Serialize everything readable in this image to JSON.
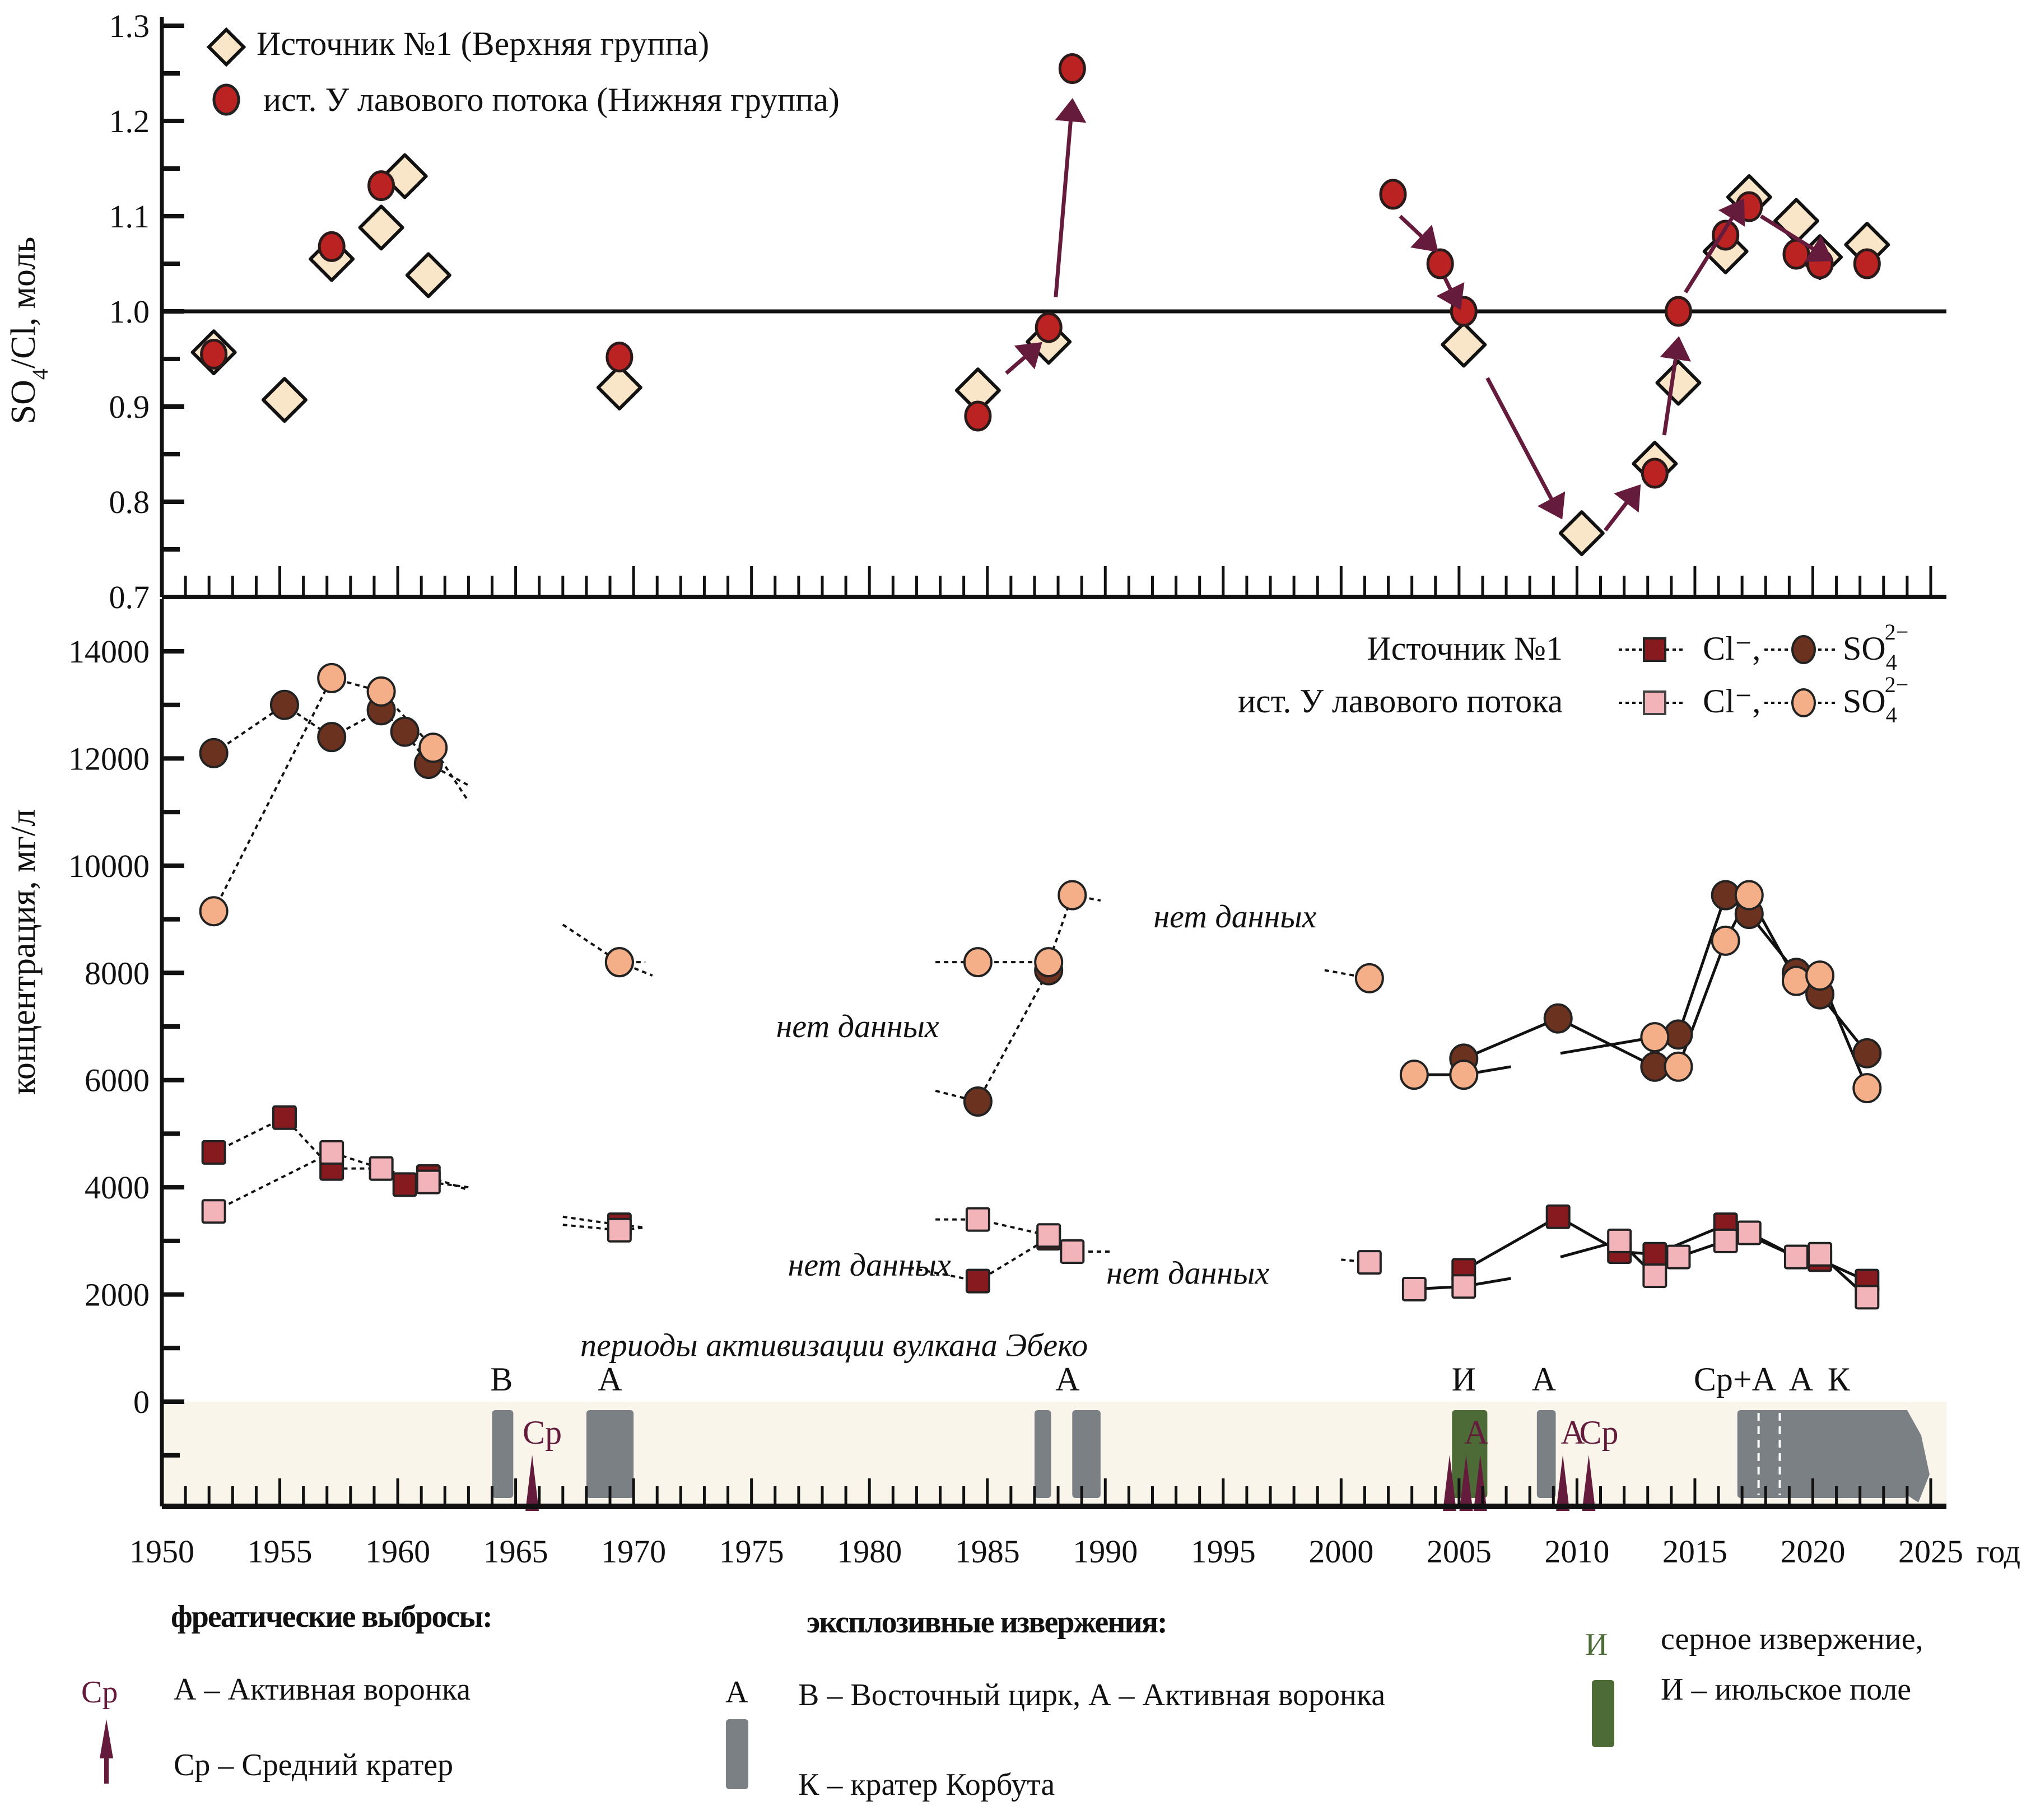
{
  "chart_data": [
    {
      "type": "scatter",
      "title": "",
      "ylabel": "SO4/Cl, моль",
      "xlabel": "",
      "ylim": [
        0.7,
        1.3
      ],
      "xlim": [
        1950,
        2025
      ],
      "yticks": [
        "0.7",
        "0.8",
        "0.9",
        "1.0",
        "1.1",
        "1.2",
        "1.3"
      ],
      "reference_line": 1.0,
      "legend_position": "top-left",
      "series": [
        {
          "name": "Источник №1 (Верхняя группа)",
          "marker": "diamond",
          "color": "#f9e6c8",
          "points": [
            {
              "x": 1952.2,
              "y": 0.957
            },
            {
              "x": 1955.2,
              "y": 0.907
            },
            {
              "x": 1957.2,
              "y": 1.055
            },
            {
              "x": 1959.3,
              "y": 1.088
            },
            {
              "x": 1960.3,
              "y": 1.142
            },
            {
              "x": 1961.3,
              "y": 1.038
            },
            {
              "x": 1969.4,
              "y": 0.92
            },
            {
              "x": 1984.6,
              "y": 0.917
            },
            {
              "x": 1987.6,
              "y": 0.968
            },
            {
              "x": 2005.2,
              "y": 0.965
            },
            {
              "x": 2010.2,
              "y": 0.767
            },
            {
              "x": 2013.3,
              "y": 0.84
            },
            {
              "x": 2014.3,
              "y": 0.925
            },
            {
              "x": 2016.3,
              "y": 1.063
            },
            {
              "x": 2017.3,
              "y": 1.12
            },
            {
              "x": 2019.3,
              "y": 1.095
            },
            {
              "x": 2020.3,
              "y": 1.057
            },
            {
              "x": 2022.3,
              "y": 1.07
            }
          ]
        },
        {
          "name": "ист. У лавового потока (Нижняя группа)",
          "marker": "circle",
          "color": "#bb2323",
          "points": [
            {
              "x": 1952.2,
              "y": 0.955
            },
            {
              "x": 1957.2,
              "y": 1.068
            },
            {
              "x": 1959.3,
              "y": 1.132
            },
            {
              "x": 1969.4,
              "y": 0.952
            },
            {
              "x": 1984.6,
              "y": 0.89
            },
            {
              "x": 1987.6,
              "y": 0.983
            },
            {
              "x": 1988.6,
              "y": 1.255
            },
            {
              "x": 2002.2,
              "y": 1.123
            },
            {
              "x": 2004.2,
              "y": 1.05
            },
            {
              "x": 2005.2,
              "y": 1.0
            },
            {
              "x": 2013.3,
              "y": 0.83
            },
            {
              "x": 2014.3,
              "y": 1.0
            },
            {
              "x": 2016.3,
              "y": 1.08
            },
            {
              "x": 2017.3,
              "y": 1.11
            },
            {
              "x": 2019.3,
              "y": 1.06
            },
            {
              "x": 2020.3,
              "y": 1.05
            },
            {
              "x": 2022.3,
              "y": 1.05
            }
          ]
        }
      ],
      "arrows": [
        {
          "from": [
            1985.8,
            0.935
          ],
          "to": [
            1987.2,
            0.965
          ]
        },
        {
          "from": [
            1987.9,
            1.015
          ],
          "to": [
            1988.6,
            1.22
          ]
        },
        {
          "from": [
            2002.5,
            1.1
          ],
          "to": [
            2004.0,
            1.065
          ]
        },
        {
          "from": [
            2004.4,
            1.035
          ],
          "to": [
            2005.0,
            1.005
          ]
        },
        {
          "from": [
            2006.2,
            0.93
          ],
          "to": [
            2009.3,
            0.785
          ]
        },
        {
          "from": [
            2011.2,
            0.77
          ],
          "to": [
            2012.6,
            0.815
          ]
        },
        {
          "from": [
            2013.7,
            0.87
          ],
          "to": [
            2014.3,
            0.97
          ]
        },
        {
          "from": [
            2014.6,
            1.02
          ],
          "to": [
            2017.0,
            1.115
          ]
        },
        {
          "from": [
            2017.8,
            1.1
          ],
          "to": [
            2020.7,
            1.055
          ]
        }
      ]
    },
    {
      "type": "line",
      "title": "",
      "ylabel": "концентрация, мг/л",
      "xlabel": "год",
      "ylim": [
        -2000,
        15000
      ],
      "xlim": [
        1950,
        2025
      ],
      "yticks": [
        "0",
        "2000",
        "4000",
        "6000",
        "8000",
        "10000",
        "12000",
        "14000"
      ],
      "xticks": [
        "1950",
        "1955",
        "1960",
        "1965",
        "1970",
        "1975",
        "1980",
        "1985",
        "1990",
        "1995",
        "2000",
        "2005",
        "2010",
        "2015",
        "2020",
        "2025"
      ],
      "legend_position": "top-right",
      "legend": {
        "rows": [
          {
            "label": "Источник №1",
            "cl": "Cl⁻,",
            "so4": "SO",
            "so4_sub": "4",
            "so4_sup": "2−"
          },
          {
            "label": "ист. У лавового потока",
            "cl": "Cl⁻,",
            "so4": "SO",
            "so4_sub": "4",
            "so4_sup": "2−"
          }
        ]
      },
      "series": [
        {
          "name": "Источник №1 SO4",
          "marker": "circle",
          "color": "#6b3220",
          "segments": [
            [
              [
                1952.2,
                12100
              ],
              [
                1955.2,
                13000
              ],
              [
                1957.2,
                12400
              ],
              [
                1959.3,
                12900
              ],
              [
                1960.3,
                12500
              ],
              [
                1961.3,
                11900
              ],
              [
                1963,
                11500
              ]
            ],
            [
              [
                1967,
                8900
              ],
              [
                1969.4,
                8200
              ],
              [
                1970.8,
                7950
              ]
            ],
            [
              [
                1982.8,
                5800
              ],
              [
                1984.6,
                5600
              ],
              [
                1987.6,
                8050
              ]
            ],
            [
              [
                2005.2,
                6400
              ],
              [
                2009.2,
                7150
              ],
              [
                2013.3,
                6250
              ]
            ],
            [
              [
                2014.3,
                6850
              ],
              [
                2016.3,
                9450
              ],
              [
                2017.3,
                9100
              ],
              [
                2019.3,
                8000
              ],
              [
                2020.3,
                7600
              ],
              [
                2022.3,
                6500
              ]
            ]
          ]
        },
        {
          "name": "ист. У лавового потока SO4",
          "marker": "circle",
          "color": "#f4ae88",
          "segments": [
            [
              [
                1952.2,
                9150
              ],
              [
                1957.2,
                13500
              ],
              [
                1959.3,
                13250
              ],
              [
                1961.5,
                12200
              ],
              [
                1963,
                11200
              ]
            ],
            [
              [
                1969.4,
                8200
              ],
              [
                1970.5,
                8200
              ]
            ],
            [
              [
                1982.8,
                8200
              ],
              [
                1984.6,
                8200
              ],
              [
                1987.6,
                8200
              ],
              [
                1988.6,
                9450
              ],
              [
                1989.8,
                9350
              ]
            ],
            [
              [
                1999.3,
                8050
              ],
              [
                2001.2,
                7900
              ]
            ],
            [
              [
                2003.1,
                6100
              ],
              [
                2005.2,
                6100
              ],
              [
                2007.2,
                6250
              ]
            ],
            [
              [
                2009.3,
                6500
              ],
              [
                2013.3,
                6800
              ]
            ],
            [
              [
                2014.3,
                6250
              ],
              [
                2016.3,
                8600
              ],
              [
                2017.3,
                9450
              ],
              [
                2019.3,
                7850
              ],
              [
                2020.3,
                7950
              ],
              [
                2022.3,
                5850
              ]
            ]
          ]
        },
        {
          "name": "Источник №1 Cl",
          "marker": "square",
          "color": "#861a1e",
          "segments": [
            [
              [
                1952.2,
                4650
              ],
              [
                1955.2,
                5300
              ],
              [
                1957.2,
                4350
              ],
              [
                1959.3,
                4350
              ],
              [
                1960.3,
                4050
              ],
              [
                1961.3,
                4200
              ],
              [
                1963,
                3950
              ]
            ],
            [
              [
                1967,
                3450
              ],
              [
                1969.4,
                3300
              ],
              [
                1970.5,
                3250
              ]
            ],
            [
              [
                1981.7,
                2500
              ],
              [
                1984.6,
                2250
              ],
              [
                1987.6,
                3050
              ]
            ],
            [
              [
                2005.2,
                2450
              ],
              [
                2009.2,
                3450
              ],
              [
                2011.8,
                2800
              ],
              [
                2013.3,
                2750
              ],
              [
                2016.3,
                3300
              ],
              [
                2019.3,
                2700
              ],
              [
                2020.3,
                2650
              ],
              [
                2022.3,
                2250
              ]
            ]
          ]
        },
        {
          "name": "ист. У лавового потока Cl",
          "marker": "square",
          "color": "#f2b3b9",
          "segments": [
            [
              [
                1952.2,
                3550
              ],
              [
                1957.2,
                4650
              ],
              [
                1959.3,
                4350
              ],
              [
                1961.3,
                4100
              ],
              [
                1963,
                4000
              ]
            ],
            [
              [
                1967,
                3300
              ],
              [
                1969.4,
                3200
              ],
              [
                1970.5,
                3250
              ]
            ],
            [
              [
                1982.8,
                3400
              ],
              [
                1984.6,
                3400
              ],
              [
                1987.6,
                3100
              ],
              [
                1988.6,
                2800
              ],
              [
                1990.3,
                2800
              ]
            ],
            [
              [
                2000,
                2650
              ],
              [
                2001.2,
                2600
              ]
            ],
            [
              [
                2003.1,
                2100
              ],
              [
                2005.2,
                2150
              ],
              [
                2007.2,
                2300
              ]
            ],
            [
              [
                2009.3,
                2700
              ],
              [
                2011.8,
                3000
              ],
              [
                2013.3,
                2350
              ]
            ],
            [
              [
                2014.3,
                2700
              ],
              [
                2016.3,
                3000
              ],
              [
                2017.3,
                3150
              ],
              [
                2019.3,
                2700
              ],
              [
                2020.3,
                2750
              ],
              [
                2022.3,
                1950
              ]
            ]
          ]
        }
      ],
      "annotations": [
        {
          "text": "нет данных",
          "x": 1979.5,
          "y": 6800
        },
        {
          "text": "нет данных",
          "x": 1995.5,
          "y": 8850
        },
        {
          "text": "нет данных",
          "x": 1980,
          "y": 2350
        },
        {
          "text": "нет данных",
          "x": 1993.5,
          "y": 2200
        },
        {
          "text": "периоды активизации вулкана Эбеко",
          "x": 1978.5,
          "y": 850
        }
      ],
      "activity": {
        "explosive_bars": [
          {
            "start": 1964.0,
            "end": 1964.9,
            "label": "В"
          },
          {
            "start": 1968.0,
            "end": 1970.0,
            "label": "А"
          },
          {
            "start": 1987.0,
            "end": 1987.7,
            "label": ""
          },
          {
            "start": 1988.6,
            "end": 1989.8,
            "label": "А"
          },
          {
            "start": 2008.3,
            "end": 2009.1,
            "label": "А"
          },
          {
            "start": 2016.8,
            "end": 2024.0,
            "label": "Ср+А А К"
          }
        ],
        "sulfur_bar": {
          "start": 2004.7,
          "end": 2006.2,
          "label": "И"
        },
        "phreatic_arrows": [
          {
            "x": 1965.7,
            "label": "Ср"
          },
          {
            "x": 2004.6,
            "label": ""
          },
          {
            "x": 2005.3,
            "label": "А"
          },
          {
            "x": 2005.9,
            "label": ""
          },
          {
            "x": 2009.4,
            "label": "А"
          },
          {
            "x": 2010.5,
            "label": "Ср"
          }
        ]
      }
    }
  ],
  "bottom_legend": {
    "phreatic_title": "фреатические выбросы:",
    "phreatic_icon_label": "Ср",
    "phreatic_items": [
      "А – Активная воронка",
      "Ср – Средний кратер"
    ],
    "explosive_title": "эксплозивные извержения:",
    "explosive_icon_label": "А",
    "explosive_items": [
      "В – Восточный цирк, А – Активная воронка",
      "К – кратер Корбута"
    ],
    "sulfur_icon_label": "И",
    "sulfur_items": [
      "серное извержение,",
      "И – июльское поле"
    ]
  },
  "colors": {
    "diamond_fill": "#f9e6c8",
    "red_circle": "#bb2323",
    "arrow": "#651b3b",
    "so4_source1": "#6b3220",
    "so4_lava": "#f4ae88",
    "cl_source1": "#861a1e",
    "cl_lava": "#f2b3b9",
    "activity_band": "#f9f5eb",
    "explosive_bar": "#7a8084",
    "sulfur_bar": "#4d6b37"
  }
}
